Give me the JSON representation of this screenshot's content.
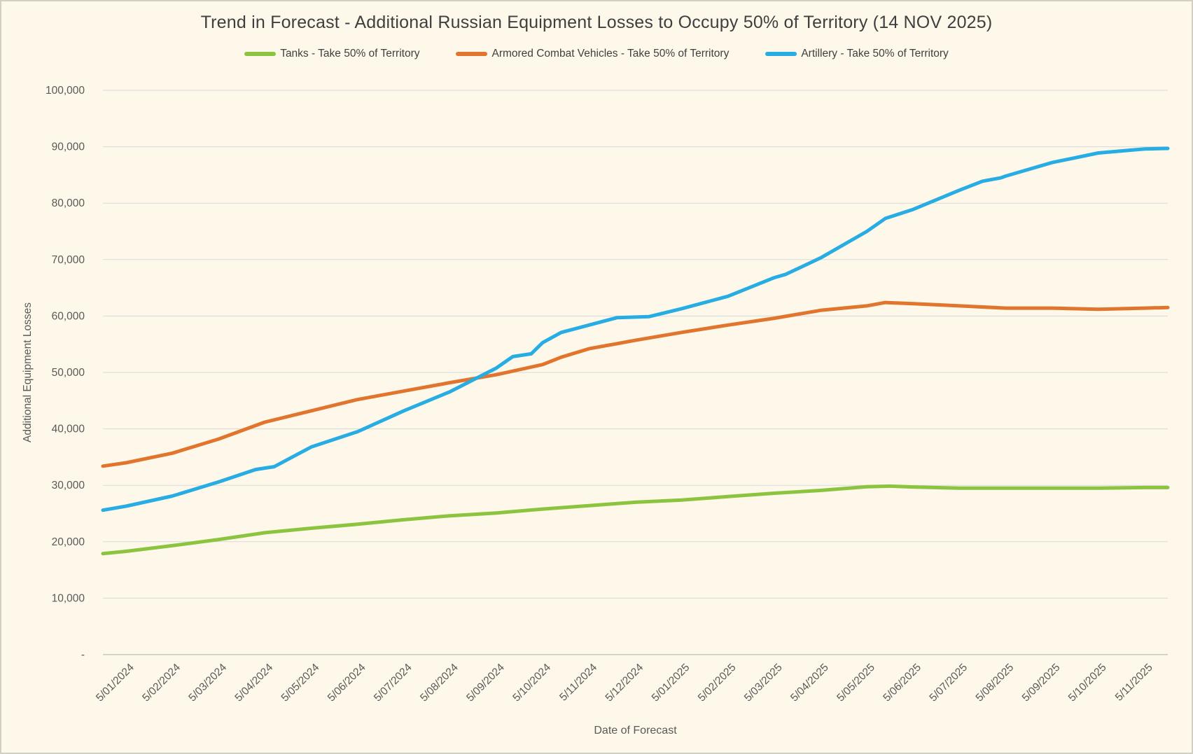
{
  "chart_data": {
    "type": "line",
    "title": "Trend in Forecast - Additional Russian Equipment Losses to Occupy 50% of Territory (14 NOV 2025)",
    "xlabel": "Date of Forecast",
    "ylabel": "Additional Equipment Losses",
    "ylim": [
      0,
      100000
    ],
    "ytick_step": 10000,
    "grid": true,
    "legend_position": "top",
    "background_color": "#FDF8E9",
    "gridline_color": "#D9D9D9",
    "axis_line_color": "#C6C6C0",
    "tick_label_color": "#595959",
    "title_color": "#3F3F3F",
    "ytick_labels_top_to_bottom": [
      "100,000",
      "90,000",
      "80,000",
      "70,000",
      "60,000",
      "50,000",
      "40,000",
      "30,000",
      "20,000",
      "10,000",
      "-"
    ],
    "categories": [
      "5/01/2024",
      "5/02/2024",
      "5/03/2024",
      "5/04/2024",
      "5/05/2024",
      "5/06/2024",
      "5/07/2024",
      "5/08/2024",
      "5/09/2024",
      "5/10/2024",
      "5/11/2024",
      "5/12/2024",
      "5/01/2025",
      "5/02/2025",
      "5/03/2025",
      "5/04/2025",
      "5/05/2025",
      "5/06/2025",
      "5/07/2025",
      "5/08/2025",
      "5/09/2025",
      "5/10/2025",
      "5/11/2025"
    ],
    "series": [
      {
        "name": "Tanks - Take 50% of Territory",
        "color": "#8CC440",
        "points_month_value": [
          [
            -0.5,
            17900
          ],
          [
            0,
            18300
          ],
          [
            1,
            19300
          ],
          [
            2,
            20400
          ],
          [
            3,
            21600
          ],
          [
            4,
            22400
          ],
          [
            5,
            23100
          ],
          [
            6,
            23900
          ],
          [
            7,
            24600
          ],
          [
            8,
            25100
          ],
          [
            9,
            25800
          ],
          [
            10,
            26400
          ],
          [
            11,
            27000
          ],
          [
            12,
            27400
          ],
          [
            13,
            28000
          ],
          [
            14,
            28600
          ],
          [
            15,
            29100
          ],
          [
            16,
            29750
          ],
          [
            16.5,
            29850
          ],
          [
            17,
            29700
          ],
          [
            18,
            29500
          ],
          [
            19,
            29500
          ],
          [
            20,
            29500
          ],
          [
            21,
            29500
          ],
          [
            22,
            29600
          ],
          [
            22.5,
            29600
          ]
        ]
      },
      {
        "name": "Armored Combat Vehicles - Take 50% of Territory",
        "color": "#E2752D",
        "points_month_value": [
          [
            -0.5,
            33400
          ],
          [
            0,
            34000
          ],
          [
            1,
            35700
          ],
          [
            2,
            38200
          ],
          [
            3,
            41200
          ],
          [
            4,
            43200
          ],
          [
            5,
            45200
          ],
          [
            6,
            46700
          ],
          [
            7,
            48200
          ],
          [
            8,
            49600
          ],
          [
            9,
            51400
          ],
          [
            9.4,
            52700
          ],
          [
            10,
            54200
          ],
          [
            11,
            55700
          ],
          [
            12,
            57100
          ],
          [
            13,
            58400
          ],
          [
            14,
            59600
          ],
          [
            15,
            61000
          ],
          [
            16,
            61800
          ],
          [
            16.4,
            62400
          ],
          [
            17,
            62200
          ],
          [
            18,
            61800
          ],
          [
            19,
            61400
          ],
          [
            20,
            61400
          ],
          [
            21,
            61200
          ],
          [
            22,
            61400
          ],
          [
            22.5,
            61500
          ]
        ]
      },
      {
        "name": "Artillery - Take 50% of Territory",
        "color": "#27ACE3",
        "points_month_value": [
          [
            -0.5,
            25600
          ],
          [
            0,
            26300
          ],
          [
            1,
            28100
          ],
          [
            2,
            30600
          ],
          [
            2.8,
            32800
          ],
          [
            3.2,
            33300
          ],
          [
            4,
            36800
          ],
          [
            5,
            39500
          ],
          [
            6,
            43200
          ],
          [
            7,
            46600
          ],
          [
            8,
            50800
          ],
          [
            8.35,
            52800
          ],
          [
            8.75,
            53300
          ],
          [
            9,
            55300
          ],
          [
            9.4,
            57100
          ],
          [
            10,
            58400
          ],
          [
            10.6,
            59700
          ],
          [
            11.3,
            59900
          ],
          [
            12,
            61300
          ],
          [
            13,
            63500
          ],
          [
            14,
            66800
          ],
          [
            14.25,
            67400
          ],
          [
            15,
            70300
          ],
          [
            16,
            75000
          ],
          [
            16.4,
            77300
          ],
          [
            17,
            78900
          ],
          [
            18,
            82300
          ],
          [
            18.5,
            83900
          ],
          [
            18.9,
            84500
          ],
          [
            19,
            84800
          ],
          [
            20,
            87200
          ],
          [
            21,
            88900
          ],
          [
            22,
            89600
          ],
          [
            22.5,
            89700
          ]
        ]
      }
    ]
  }
}
